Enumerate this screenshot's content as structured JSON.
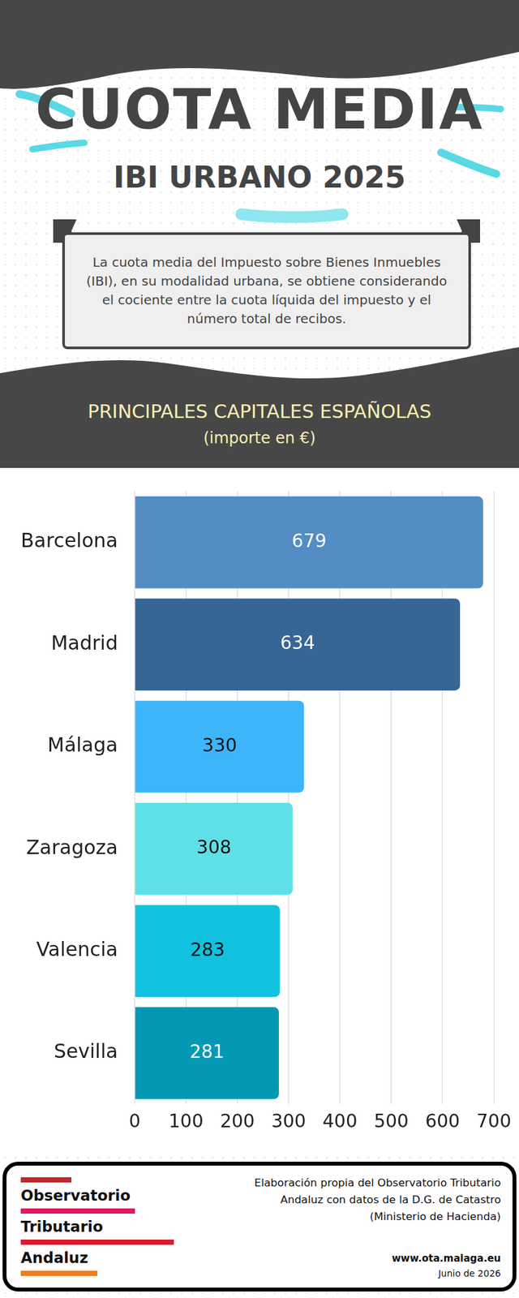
{
  "header": {
    "title": "CUOTA MEDIA",
    "subtitle": "IBI URBANO 2025",
    "description": "La cuota media del Impuesto sobre Bienes Inmuebles (IBI), en su modalidad urbana, se obtiene considerando el cociente entre la cuota líquida del impuesto y el número total de recibos."
  },
  "chart_data": {
    "type": "bar",
    "orientation": "horizontal",
    "title": "PRINCIPALES CAPITALES ESPAÑOLAS",
    "subtitle": "(importe en €)",
    "categories": [
      "Barcelona",
      "Madrid",
      "Málaga",
      "Zaragoza",
      "Valencia",
      "Sevilla"
    ],
    "values": [
      679,
      634,
      330,
      308,
      283,
      281
    ],
    "colors": [
      "#548cc4",
      "#376594",
      "#3db5fb",
      "#5ee0e6",
      "#10c2df",
      "#0399b4"
    ],
    "xlim": [
      0,
      700
    ],
    "xticks": [
      0,
      100,
      200,
      300,
      400,
      500,
      600,
      700
    ],
    "grid": true,
    "data_labels": true
  },
  "footer": {
    "logo": [
      "Observatorio",
      "Tributario",
      "Andaluz"
    ],
    "source": "Elaboración propia del Observatorio Tributario Andaluz con datos de la D.G. de Catastro (Ministerio de Hacienda)",
    "url": "www.ota.malaga.eu",
    "date": "Junio de 2026"
  }
}
